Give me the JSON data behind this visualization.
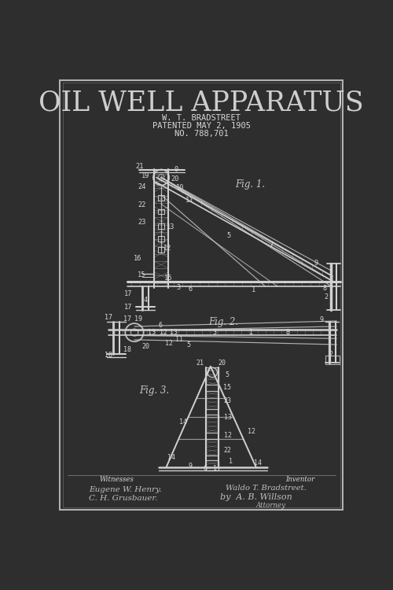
{
  "bg_color": "#2e2e2e",
  "border_color": "#c0c0c0",
  "line_color": "#d0d0d0",
  "text_color": "#d8d8d8",
  "title": "OIL WELL APPARATUS",
  "inventor_line1": "W. T. BRADSTREET",
  "inventor_line2": "PATENTED MAY 2, 1905",
  "inventor_line3": "NO. 788,701",
  "fig1_label": "Fig. 1.",
  "fig2_label": "Fig. 2.",
  "fig3_label": "Fig. 3.",
  "witnesses_label": "Witnesses",
  "witness1": "Eugene W. Henry.",
  "witness2": "C. H. Grusbauer.",
  "inventor_label": "Inventor",
  "inventor_name": "Waldo T. Bradstreet.",
  "by_label": "by  A. B. Willson",
  "attorney_label": "Attorney"
}
